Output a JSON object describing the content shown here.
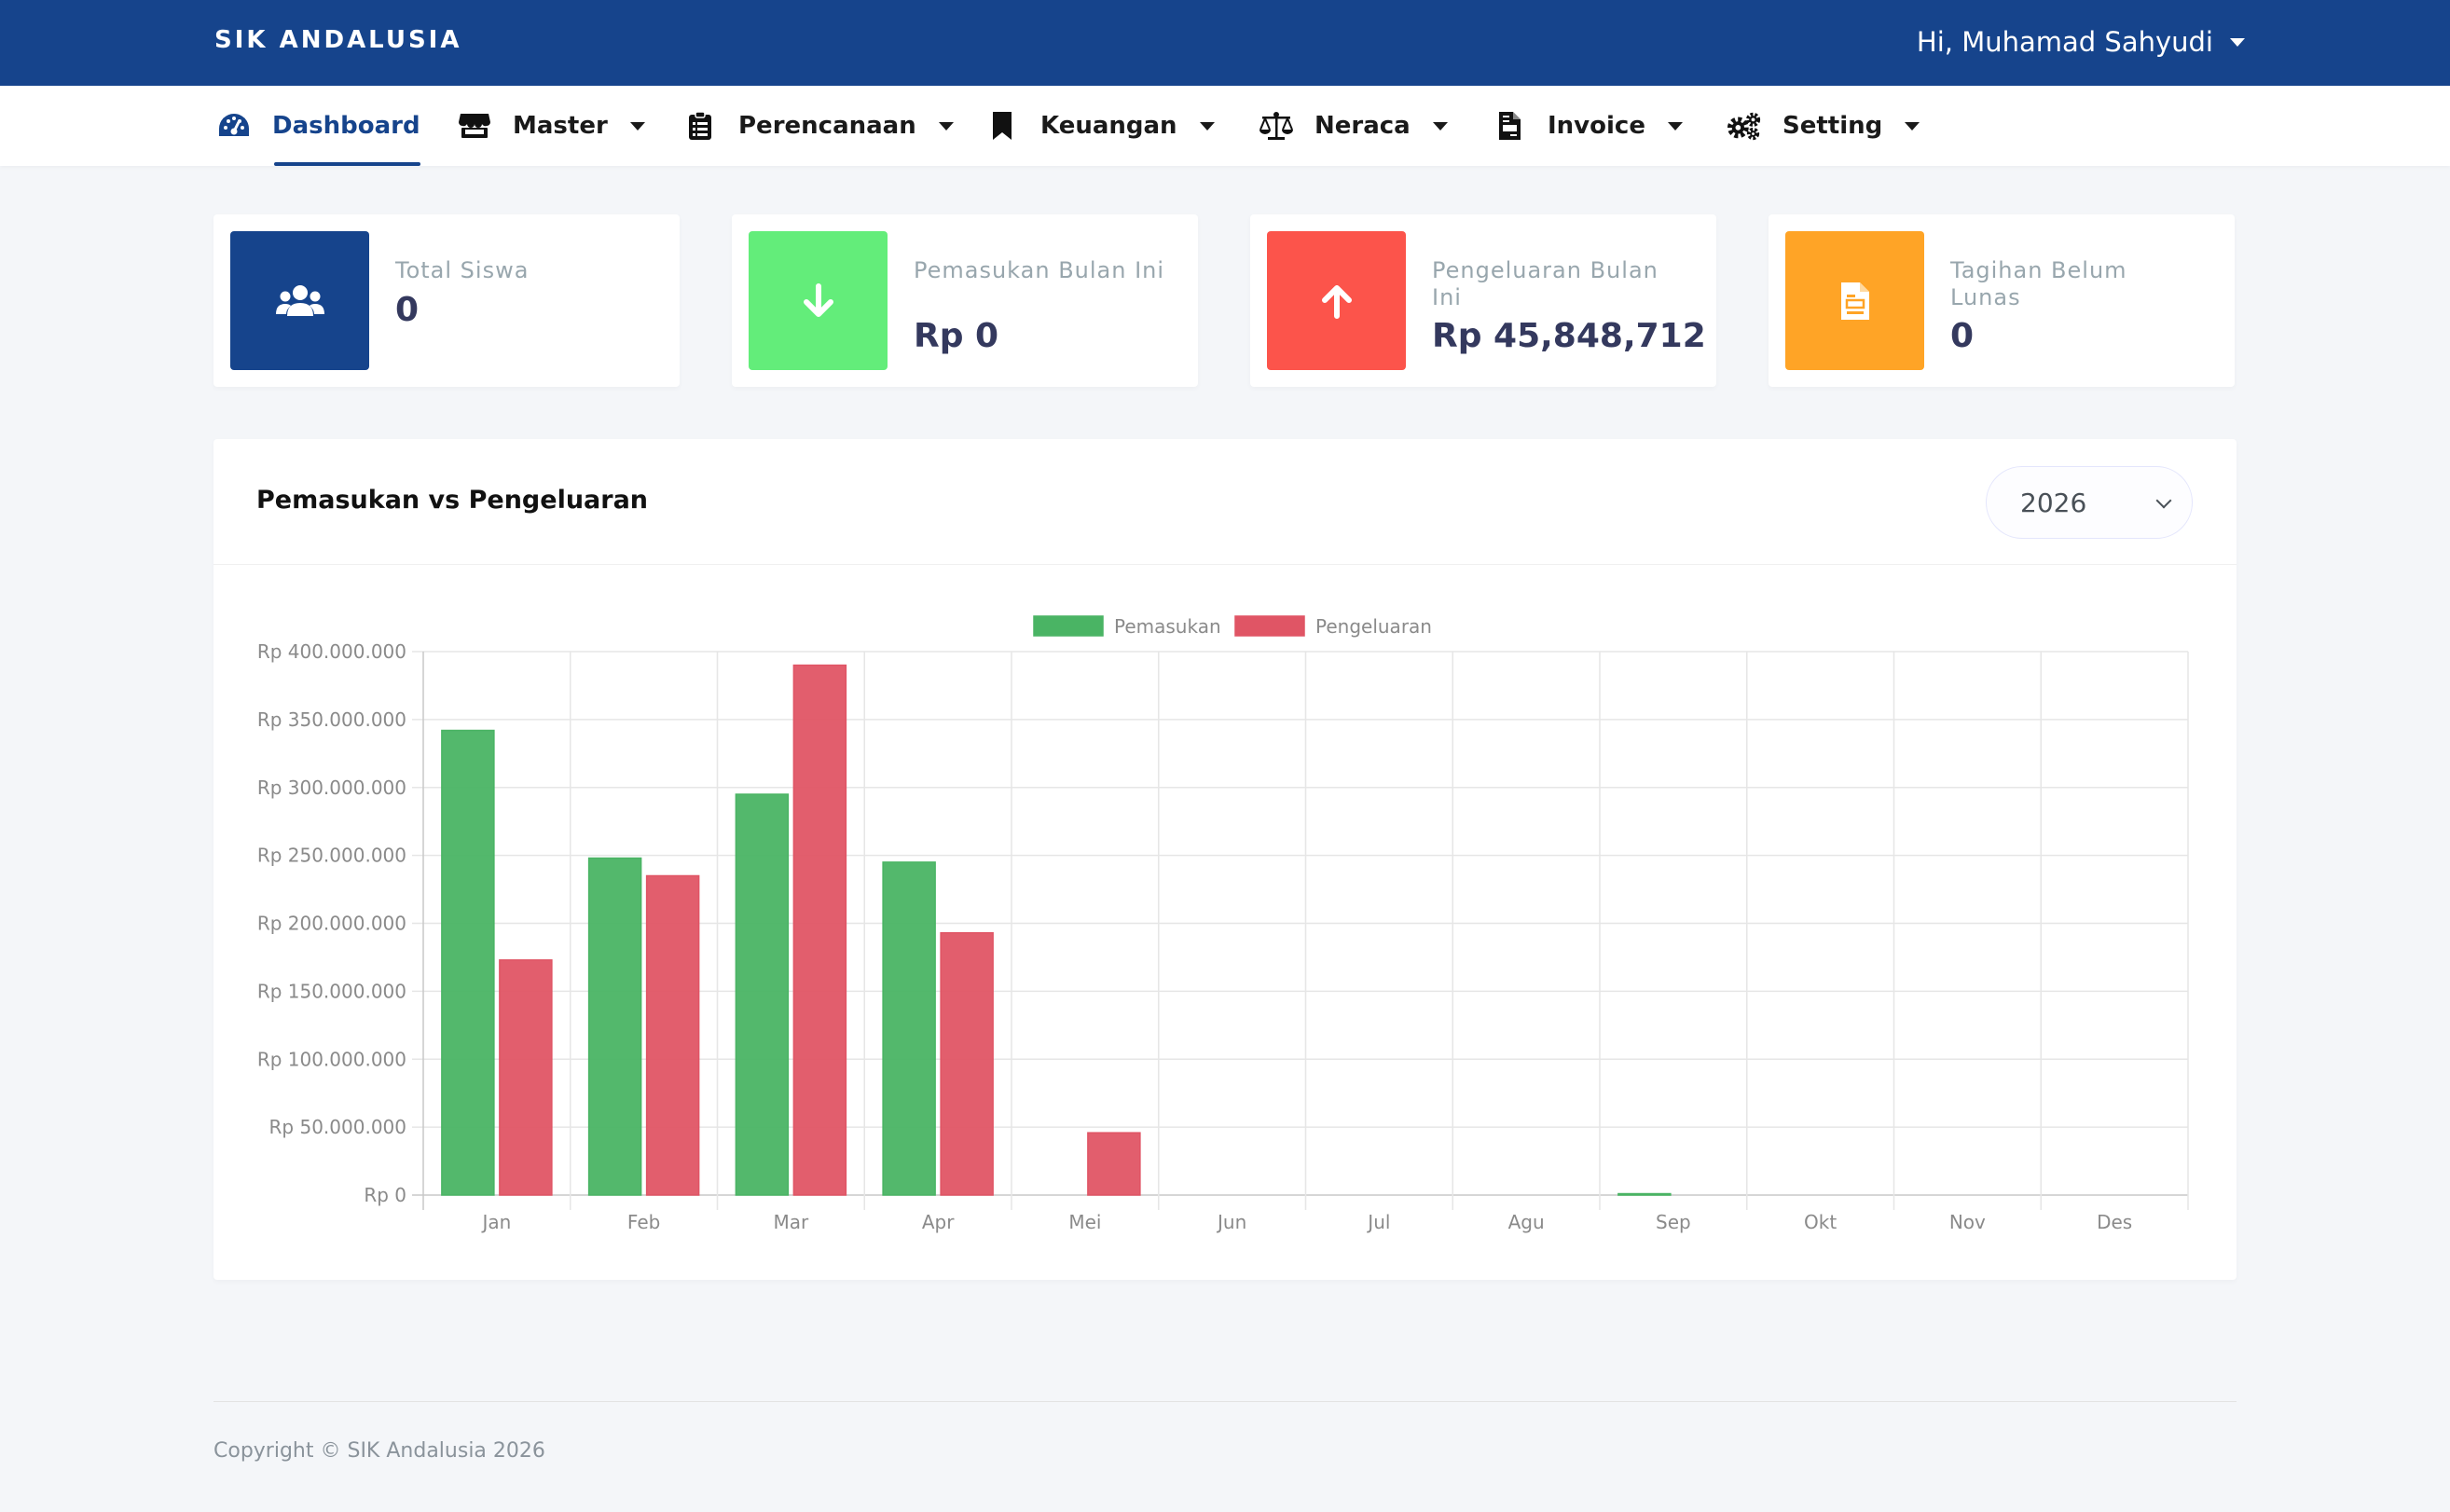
{
  "app": {
    "brand": "SIK ANDALUSIA"
  },
  "user": {
    "greeting": "Hi, Muhamad Sahyudi"
  },
  "nav": {
    "items": [
      {
        "label": "Dashboard",
        "icon": "dashboard-gauge-icon",
        "active": true
      },
      {
        "label": "Master",
        "icon": "store-icon"
      },
      {
        "label": "Perencanaan",
        "icon": "clipboard-list-icon"
      },
      {
        "label": "Keuangan",
        "icon": "bookmark-icon"
      },
      {
        "label": "Neraca",
        "icon": "balance-scale-icon"
      },
      {
        "label": "Invoice",
        "icon": "file-invoice-icon"
      },
      {
        "label": "Setting",
        "icon": "gears-icon"
      }
    ]
  },
  "stats": {
    "total_siswa": {
      "label": "Total Siswa",
      "value": "0",
      "color": "#16448c",
      "icon": "users-icon"
    },
    "pemasukan": {
      "label": "Pemasukan Bulan Ini",
      "value": "Rp 0",
      "color": "#63ed7a",
      "icon": "arrow-down-icon"
    },
    "pengeluaran": {
      "label": "Pengeluaran Bulan Ini",
      "value": "Rp 45,848,712",
      "color": "#fc544b",
      "icon": "arrow-up-icon"
    },
    "tagihan": {
      "label": "Tagihan Belum Lunas",
      "value": "0",
      "color": "#ffa426",
      "icon": "file-document-icon"
    }
  },
  "chart_card": {
    "title": "Pemasukan vs Pengeluaran",
    "year_selected": "2026"
  },
  "chart_data": {
    "type": "bar",
    "title": "",
    "xlabel": "",
    "ylabel": "",
    "categories": [
      "Jan",
      "Feb",
      "Mar",
      "Apr",
      "Mei",
      "Jun",
      "Jul",
      "Agu",
      "Sep",
      "Okt",
      "Nov",
      "Des"
    ],
    "series": [
      {
        "name": "Pemasukan",
        "color": "#4ab464",
        "values": [
          342000000,
          248000000,
          295000000,
          245000000,
          0,
          0,
          0,
          0,
          1000000,
          0,
          0,
          0
        ]
      },
      {
        "name": "Pengeluaran",
        "color": "#e05565",
        "values": [
          173000000,
          235000000,
          390000000,
          193000000,
          45848712,
          0,
          0,
          0,
          0,
          0,
          0,
          0
        ]
      }
    ],
    "ylim": [
      0,
      400000000
    ],
    "yticks": [
      0,
      50000000,
      100000000,
      150000000,
      200000000,
      250000000,
      300000000,
      350000000,
      400000000
    ],
    "ytick_labels": [
      "Rp 0",
      "Rp 50.000.000",
      "Rp 100.000.000",
      "Rp 150.000.000",
      "Rp 200.000.000",
      "Rp 250.000.000",
      "Rp 300.000.000",
      "Rp 350.000.000",
      "Rp 400.000.000"
    ],
    "grid": true,
    "legend": "top-center"
  },
  "footer": {
    "copyright": "Copyright © SIK Andalusia 2026"
  }
}
